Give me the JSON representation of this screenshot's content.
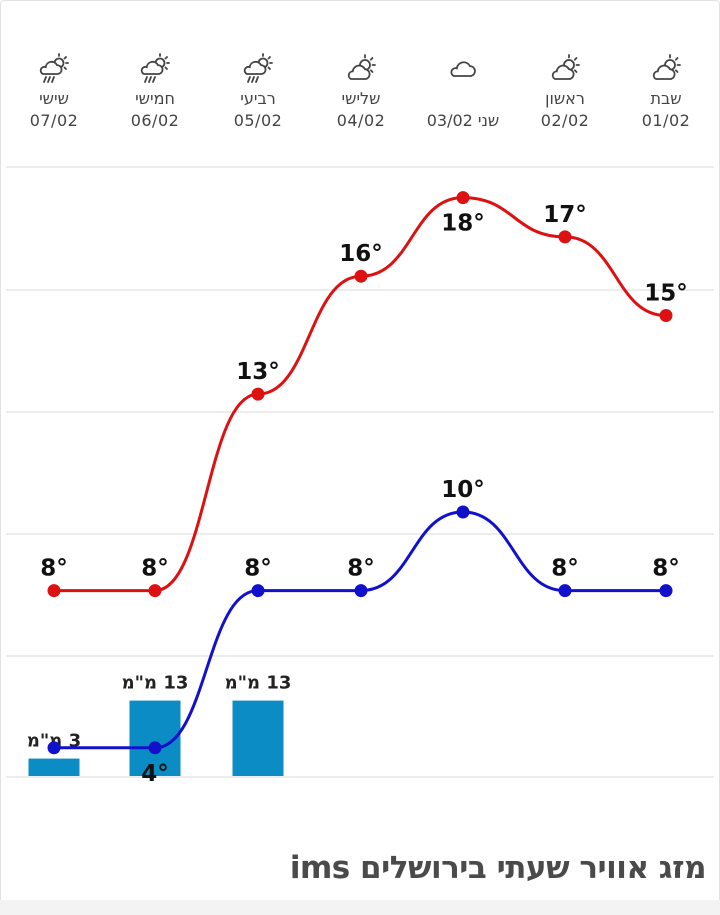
{
  "days": [
    {
      "name": "שבת",
      "date": "01/02",
      "icon": "partly-cloudy-sun-icon"
    },
    {
      "name": "ראשון",
      "date": "02/02",
      "icon": "partly-cloudy-sun-icon"
    },
    {
      "name": "שני 03/02",
      "date": "",
      "icon": "cloud-icon"
    },
    {
      "name": "שלישי",
      "date": "04/02",
      "icon": "partly-cloudy-sun-icon"
    },
    {
      "name": "רביעי",
      "date": "05/02",
      "icon": "rain-sun-cloud-icon"
    },
    {
      "name": "חמישי",
      "date": "06/02",
      "icon": "rain-sun-cloud-icon"
    },
    {
      "name": "שישי",
      "date": "07/02",
      "icon": "rain-sun-cloud-icon"
    }
  ],
  "chart_data": {
    "type": "line",
    "categories": [
      "01/02",
      "02/02",
      "03/02",
      "04/02",
      "05/02",
      "06/02",
      "07/02"
    ],
    "series": [
      {
        "values": [
          15,
          17,
          18,
          16,
          13,
          8,
          8
        ],
        "labels": [
          "15°",
          "17°",
          "18°",
          "16°",
          "13°",
          "8°",
          "8°"
        ],
        "color": "#dd1111"
      },
      {
        "values": [
          8,
          8,
          10,
          8,
          8,
          4,
          4
        ],
        "labels": [
          "8°",
          "8°",
          "10°",
          "8°",
          "8°",
          "4°",
          ""
        ],
        "color": "#1111cc"
      }
    ],
    "bars": {
      "values": [
        0,
        0,
        0,
        0,
        13,
        13,
        3
      ],
      "labels": [
        "",
        "",
        "",
        "",
        "13 מ\"מ",
        "13 מ\"מ",
        "3 מ\"מ"
      ],
      "color": "#0b8cc4"
    },
    "grid": true
  },
  "caption": "מזג אוויר שעתי בירושלים ims"
}
